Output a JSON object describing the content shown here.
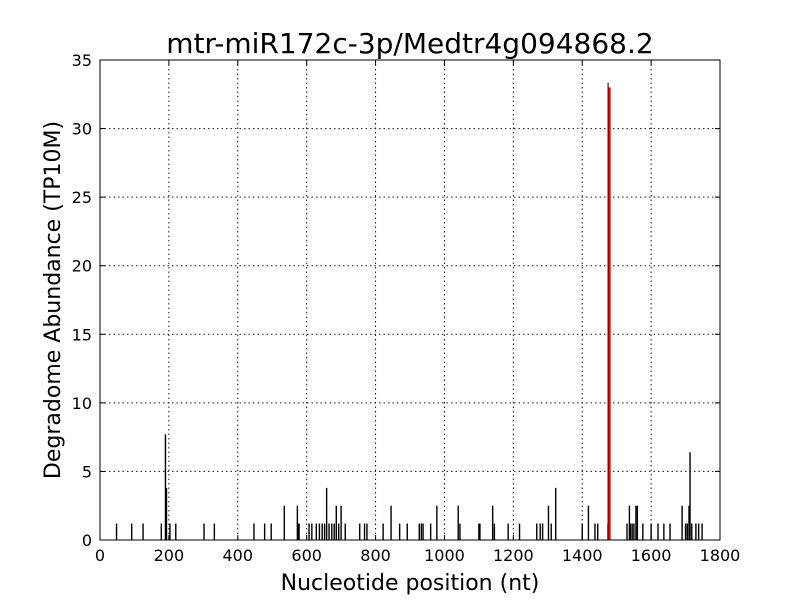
{
  "chart_data": {
    "type": "bar",
    "title": "mtr-miR172c-3p/Medtr4g094868.2",
    "xlabel": "Nucleotide position (nt)",
    "ylabel": "Degradome Abundance (TP10M)",
    "xlim": [
      0,
      1800
    ],
    "ylim": [
      0,
      35
    ],
    "xticks": [
      0,
      200,
      400,
      600,
      800,
      1000,
      1200,
      1400,
      1600,
      1800
    ],
    "yticks": [
      0,
      5,
      10,
      15,
      20,
      25,
      30,
      35
    ],
    "grid": true,
    "colors": {
      "background": "#000000",
      "target": "#ff0000"
    },
    "background_series": {
      "name": "",
      "x": [
        48,
        92,
        125,
        178,
        190,
        193,
        203,
        220,
        302,
        332,
        447,
        478,
        497,
        535,
        573,
        575,
        578,
        607,
        615,
        628,
        637,
        645,
        652,
        658,
        665,
        673,
        680,
        686,
        693,
        700,
        712,
        754,
        768,
        775,
        822,
        845,
        870,
        892,
        927,
        933,
        938,
        960,
        978,
        1040,
        1045,
        1100,
        1103,
        1140,
        1145,
        1185,
        1218,
        1268,
        1278,
        1285,
        1302,
        1310,
        1323,
        1400,
        1418,
        1437,
        1445,
        1475,
        1530,
        1537,
        1540,
        1545,
        1550,
        1556,
        1560,
        1576,
        1600,
        1620,
        1637,
        1655,
        1690,
        1700,
        1705,
        1710,
        1713,
        1718,
        1730,
        1738,
        1748
      ],
      "y": [
        1.2,
        1.2,
        1.2,
        1.2,
        7.7,
        3.8,
        1.2,
        1.2,
        1.2,
        1.2,
        1.2,
        1.2,
        1.2,
        2.5,
        2.5,
        1.2,
        1.2,
        1.2,
        1.2,
        1.2,
        1.2,
        1.2,
        1.2,
        3.8,
        1.2,
        1.2,
        1.2,
        2.5,
        1.2,
        2.5,
        1.2,
        1.2,
        1.2,
        1.2,
        1.2,
        2.5,
        1.2,
        1.2,
        1.2,
        1.2,
        1.2,
        1.2,
        2.5,
        2.5,
        1.2,
        1.2,
        1.2,
        2.5,
        1.2,
        1.2,
        1.2,
        1.2,
        1.2,
        1.2,
        2.5,
        1.2,
        3.8,
        1.2,
        2.5,
        1.2,
        1.2,
        1.2,
        1.2,
        2.5,
        1.2,
        1.2,
        1.2,
        2.5,
        2.5,
        1.2,
        1.2,
        1.2,
        1.2,
        1.2,
        2.5,
        1.2,
        1.2,
        2.5,
        6.4,
        1.2,
        1.2,
        1.2,
        1.2
      ]
    },
    "target_series": {
      "name": "",
      "x": [
        1478
      ],
      "y": [
        33.0
      ]
    }
  }
}
